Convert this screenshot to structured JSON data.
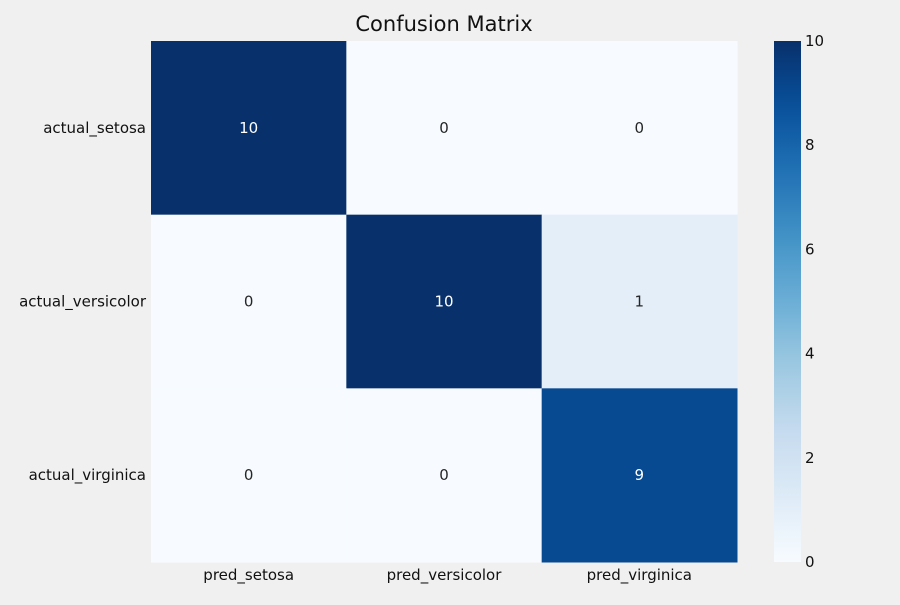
{
  "chart_data": {
    "type": "heatmap",
    "title": "Confusion Matrix",
    "row_labels": [
      "actual_setosa",
      "actual_versicolor",
      "actual_virginica"
    ],
    "col_labels": [
      "pred_setosa",
      "pred_versicolor",
      "pred_virginica"
    ],
    "values": [
      [
        10,
        0,
        0
      ],
      [
        0,
        10,
        1
      ],
      [
        0,
        0,
        9
      ]
    ],
    "colormap": "Blues",
    "vmin": 0,
    "vmax": 10,
    "colorbar_ticks": [
      0,
      2,
      4,
      6,
      8,
      10
    ],
    "background_color": "#f0f0f0"
  }
}
